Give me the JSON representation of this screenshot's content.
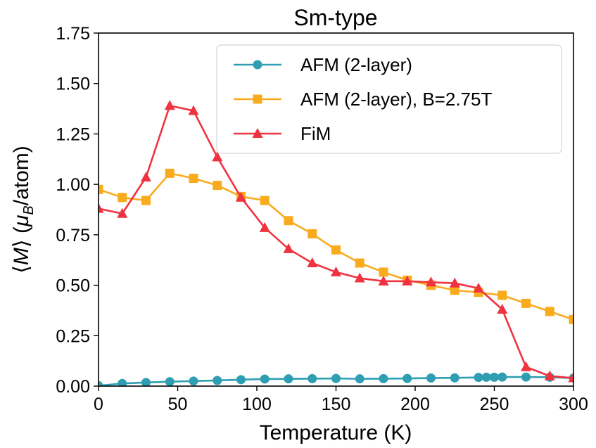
{
  "chart_data": {
    "type": "line",
    "title": "Sm-type",
    "xlabel": "Temperature (K)",
    "ylabel": "⟨M⟩ (μ_B/atom)",
    "xlim": [
      0,
      300
    ],
    "ylim": [
      0,
      1.75
    ],
    "xticks": [
      "0",
      "50",
      "100",
      "150",
      "200",
      "250",
      "300"
    ],
    "yticks": [
      "0.00",
      "0.25",
      "0.50",
      "0.75",
      "1.00",
      "1.25",
      "1.50",
      "1.75"
    ],
    "grid": false,
    "legend_position": "top-right",
    "series": [
      {
        "name": "AFM (2-layer)",
        "color": "#2e9fb3",
        "marker": "circle",
        "x": [
          0,
          15,
          30,
          45,
          60,
          75,
          90,
          105,
          120,
          135,
          150,
          165,
          180,
          195,
          210,
          225,
          240,
          245,
          250,
          255,
          270,
          285,
          300
        ],
        "y": [
          0.002,
          0.013,
          0.018,
          0.022,
          0.025,
          0.028,
          0.032,
          0.035,
          0.036,
          0.037,
          0.038,
          0.036,
          0.037,
          0.038,
          0.04,
          0.041,
          0.043,
          0.044,
          0.044,
          0.045,
          0.045,
          0.044,
          0.04
        ]
      },
      {
        "name": "AFM (2-layer), B=2.75T",
        "color": "#f9ab1e",
        "marker": "square",
        "x": [
          0,
          15,
          30,
          45,
          60,
          75,
          90,
          105,
          120,
          135,
          150,
          165,
          180,
          195,
          210,
          225,
          240,
          255,
          270,
          285,
          300
        ],
        "y": [
          0.975,
          0.935,
          0.92,
          1.055,
          1.03,
          0.995,
          0.94,
          0.92,
          0.82,
          0.755,
          0.675,
          0.61,
          0.565,
          0.525,
          0.5,
          0.475,
          0.465,
          0.45,
          0.41,
          0.37,
          0.33
        ]
      },
      {
        "name": "FiM",
        "color": "#ef3340",
        "marker": "triangle",
        "x": [
          0,
          15,
          30,
          45,
          60,
          75,
          90,
          105,
          120,
          135,
          150,
          165,
          180,
          195,
          210,
          225,
          240,
          255,
          270,
          285,
          300
        ],
        "y": [
          0.88,
          0.855,
          1.035,
          1.39,
          1.365,
          1.135,
          0.935,
          0.785,
          0.68,
          0.61,
          0.565,
          0.535,
          0.52,
          0.52,
          0.515,
          0.51,
          0.485,
          0.38,
          0.095,
          0.05,
          0.04
        ]
      }
    ]
  }
}
